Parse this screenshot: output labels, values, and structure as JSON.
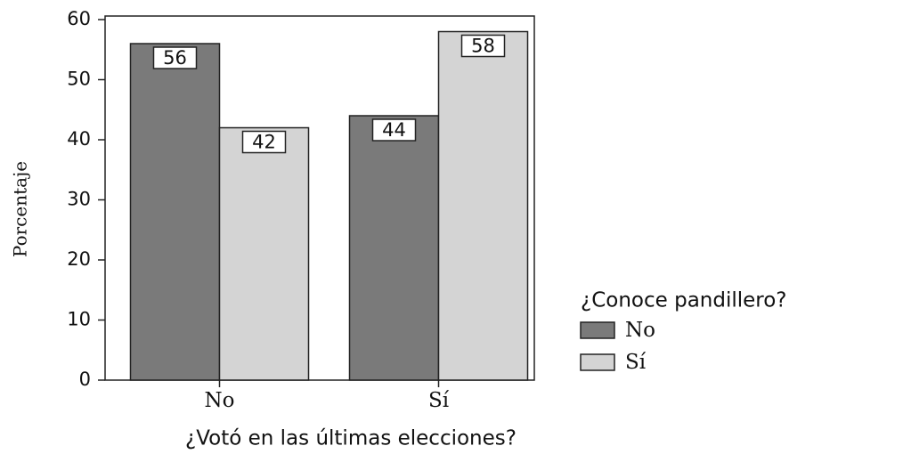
{
  "chart_data": {
    "type": "bar",
    "categories": [
      "No",
      "Sí"
    ],
    "series": [
      {
        "name": "No",
        "color": "#7a7a7a",
        "values": [
          56,
          44
        ]
      },
      {
        "name": "Sí",
        "color": "#d4d4d4",
        "values": [
          42,
          58
        ]
      }
    ],
    "x_label": "¿Votó en las últimas elecciones?",
    "y_label": "Porcentaje",
    "legend_title": "¿Conoce pandillero?",
    "legend": "right",
    "ylim": [
      0,
      60
    ],
    "yticks": [
      0,
      10,
      20,
      30,
      40,
      50,
      60
    ]
  }
}
